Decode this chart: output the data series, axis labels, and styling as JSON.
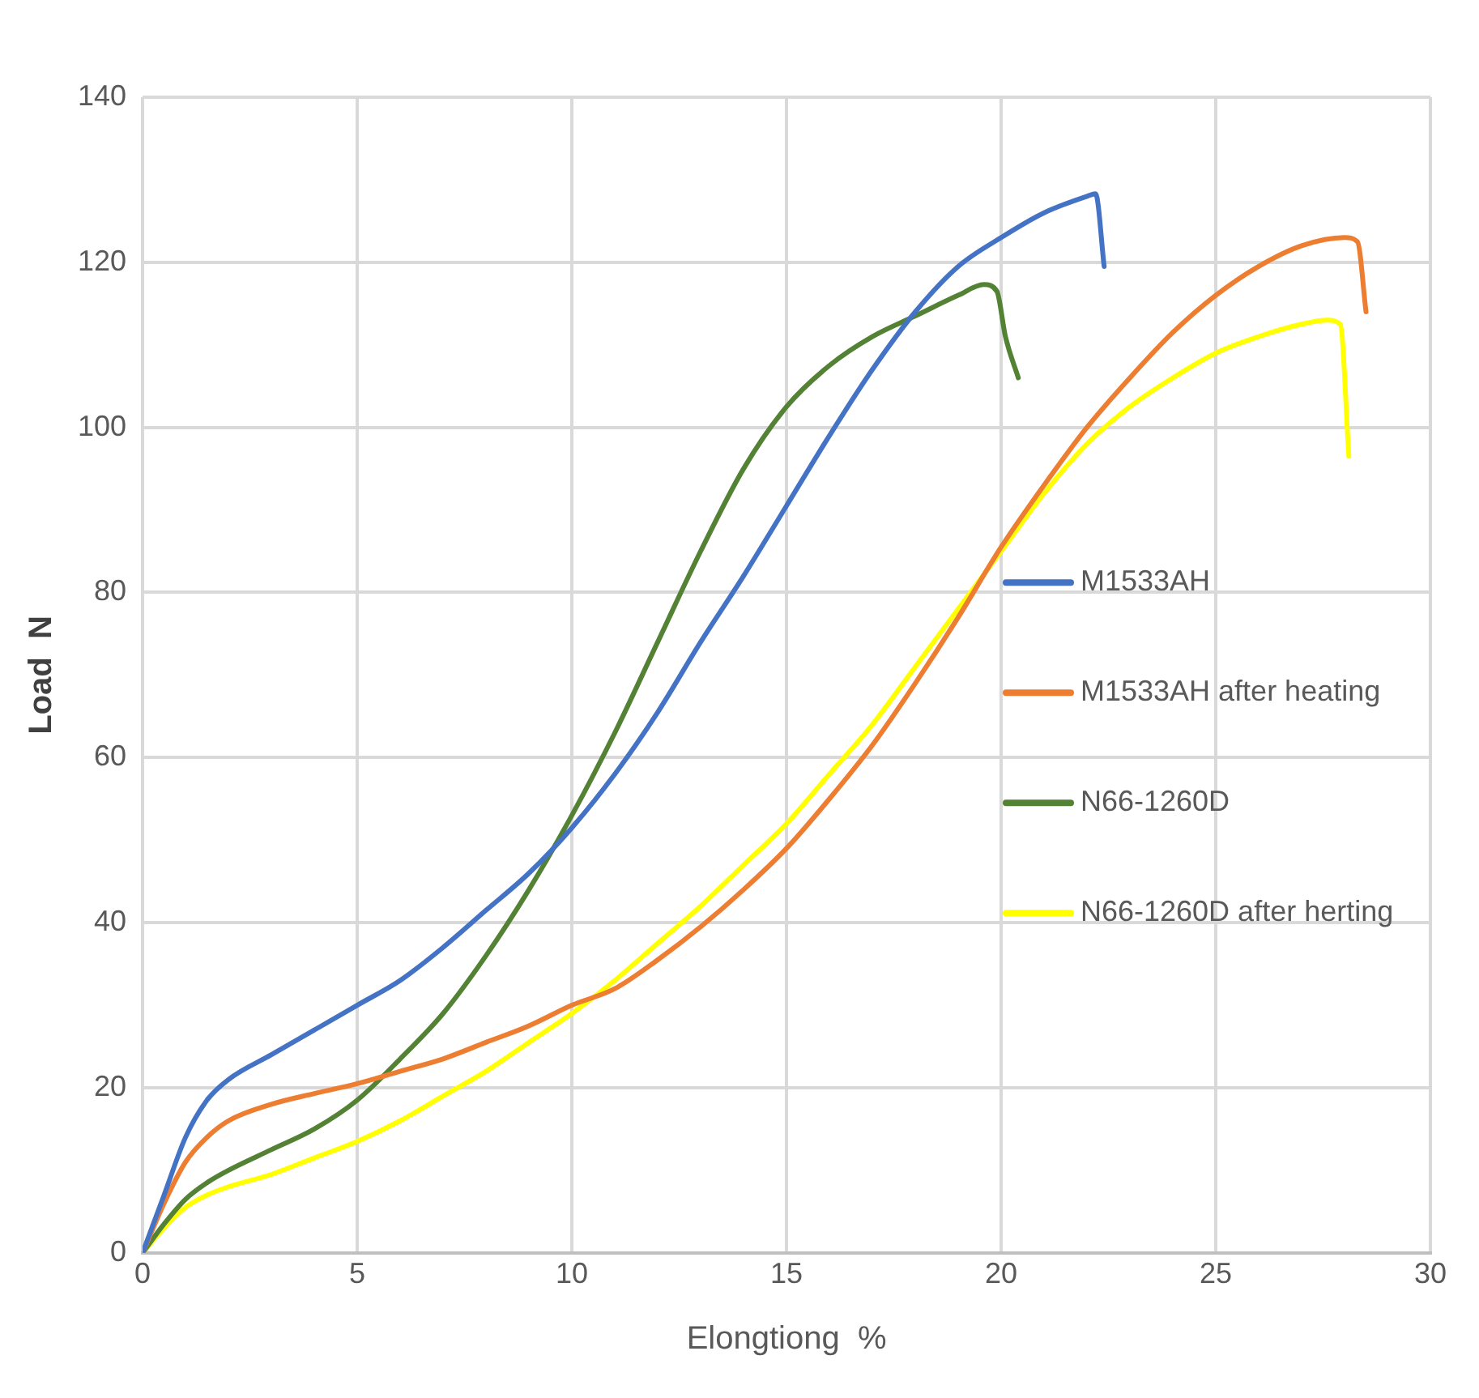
{
  "chart_data": {
    "type": "line",
    "xlabel": "Elongtiong  %",
    "ylabel": "Load  N",
    "xlim": [
      0,
      30
    ],
    "xticks": [
      0,
      5,
      10,
      15,
      20,
      25,
      30
    ],
    "ylim": [
      0,
      140
    ],
    "yticks": [
      0,
      20,
      40,
      60,
      80,
      100,
      120,
      140
    ],
    "grid": true,
    "legend": "right",
    "marker": "none",
    "line_style": "solid",
    "series": [
      {
        "name": "M1533AH",
        "color": "#4472c4",
        "x": [
          0,
          0.5,
          1,
          1.5,
          2,
          3,
          4,
          5,
          6,
          7,
          8,
          9,
          10,
          11,
          12,
          13,
          14,
          15,
          16,
          17,
          18,
          19,
          20,
          21,
          22,
          22.2,
          22.4
        ],
        "values": [
          0,
          7,
          14,
          18.5,
          21,
          24,
          27,
          30,
          33,
          37,
          41.5,
          46,
          51.5,
          58,
          65.5,
          74,
          82,
          90.5,
          99,
          107,
          114,
          119.5,
          123,
          126,
          128,
          128.3,
          119.5
        ]
      },
      {
        "name": "M1533AH after heating",
        "color": "#ed7d31",
        "x": [
          0,
          0.5,
          1,
          1.5,
          2,
          3,
          4,
          5,
          6,
          7,
          8,
          9,
          10,
          11,
          12,
          13,
          14,
          15,
          16,
          17,
          18,
          19,
          20,
          21,
          22,
          23,
          24,
          25,
          26,
          27,
          28,
          28.3,
          28.5
        ],
        "values": [
          0,
          6,
          11,
          14,
          16,
          18,
          19.3,
          20.5,
          22,
          23.5,
          25.5,
          27.5,
          30,
          32,
          35.5,
          39.5,
          44,
          49,
          55,
          61.5,
          69,
          77,
          85.5,
          93,
          100,
          106,
          111.5,
          116,
          119.5,
          122,
          123,
          122.5,
          114
        ]
      },
      {
        "name": "N66-1260D",
        "color": "#548235",
        "x": [
          0,
          0.5,
          1,
          1.5,
          2,
          3,
          4,
          5,
          6,
          7,
          8,
          9,
          10,
          11,
          12,
          13,
          14,
          15,
          16,
          17,
          18,
          19,
          19.6,
          19.9,
          20.1,
          20.4
        ],
        "values": [
          0,
          3.5,
          6.5,
          8.5,
          10,
          12.5,
          15,
          18.5,
          23.5,
          29,
          36,
          44,
          53,
          63,
          74,
          85,
          95,
          102.5,
          107.5,
          111,
          113.5,
          116,
          117.3,
          116.5,
          111,
          106
        ]
      },
      {
        "name": "N66-1260D after herting",
        "color": "#ffff00",
        "x": [
          0,
          0.5,
          1,
          1.5,
          2,
          3,
          4,
          5,
          6,
          7,
          8,
          9,
          10,
          11,
          12,
          13,
          14,
          15,
          16,
          17,
          18,
          19,
          20,
          21,
          22,
          23,
          24,
          25,
          26,
          27,
          27.6,
          27.9,
          28.1
        ],
        "values": [
          0,
          3,
          5.5,
          7,
          8,
          9.5,
          11.5,
          13.5,
          16,
          19,
          22,
          25.5,
          29,
          33,
          37.5,
          42,
          47,
          52,
          58,
          64,
          71,
          78,
          85,
          92,
          98,
          102.5,
          106,
          109,
          111,
          112.5,
          113,
          112.5,
          96.5
        ]
      }
    ]
  }
}
